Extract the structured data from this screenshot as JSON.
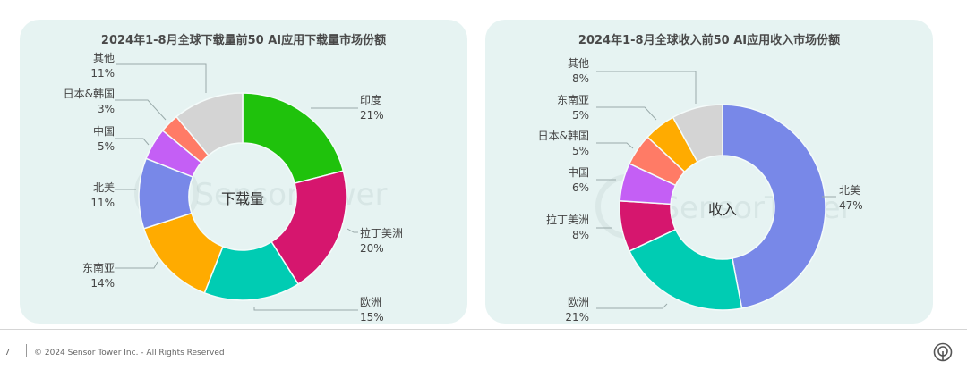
{
  "chart_data": [
    {
      "type": "pie",
      "variant": "donut",
      "title": "2024年1-8月全球下载量前50 AI应用下载量市场份额",
      "center_label": "下载量",
      "categories": [
        "印度",
        "拉丁美洲",
        "欧洲",
        "东南亚",
        "北美",
        "中国",
        "日本&韩国",
        "其他"
      ],
      "values": [
        21,
        20,
        15,
        14,
        11,
        5,
        3,
        11
      ],
      "colors": [
        "#1fc20c",
        "#d6166e",
        "#00ccb3",
        "#ffab00",
        "#7888e8",
        "#c45ff5",
        "#ff7b66",
        "#d4d4d4"
      ],
      "unit": "%",
      "labels": [
        {
          "name": "印度",
          "value": "21%"
        },
        {
          "name": "拉丁美洲",
          "value": "20%"
        },
        {
          "name": "欧洲",
          "value": "15%"
        },
        {
          "name": "东南亚",
          "value": "14%"
        },
        {
          "name": "北美",
          "value": "11%"
        },
        {
          "name": "中国",
          "value": "5%"
        },
        {
          "name": "日本&韩国",
          "value": "3%"
        },
        {
          "name": "其他",
          "value": "11%"
        }
      ]
    },
    {
      "type": "pie",
      "variant": "donut",
      "title": "2024年1-8月全球收入前50 AI应用收入市场份额",
      "center_label": "收入",
      "categories": [
        "北美",
        "欧洲",
        "拉丁美洲",
        "中国",
        "日本&韩国",
        "东南亚",
        "其他"
      ],
      "values": [
        47,
        21,
        8,
        6,
        5,
        5,
        8
      ],
      "colors": [
        "#7888e8",
        "#00ccb3",
        "#d6166e",
        "#c45ff5",
        "#ff7b66",
        "#ffab00",
        "#d4d4d4"
      ],
      "unit": "%",
      "labels": [
        {
          "name": "北美",
          "value": "47%"
        },
        {
          "name": "欧洲",
          "value": "21%"
        },
        {
          "name": "拉丁美洲",
          "value": "8%"
        },
        {
          "name": "中国",
          "value": "6%"
        },
        {
          "name": "日本&韩国",
          "value": "5%"
        },
        {
          "name": "东南亚",
          "value": "5%"
        },
        {
          "name": "其他",
          "value": "8%"
        }
      ]
    }
  ],
  "watermark": "SensorTower",
  "footer": {
    "page_number": "7",
    "copyright": "© 2024 Sensor Tower Inc. - All Rights Reserved",
    "logo_icon": "sensor-tower-logo-icon"
  }
}
